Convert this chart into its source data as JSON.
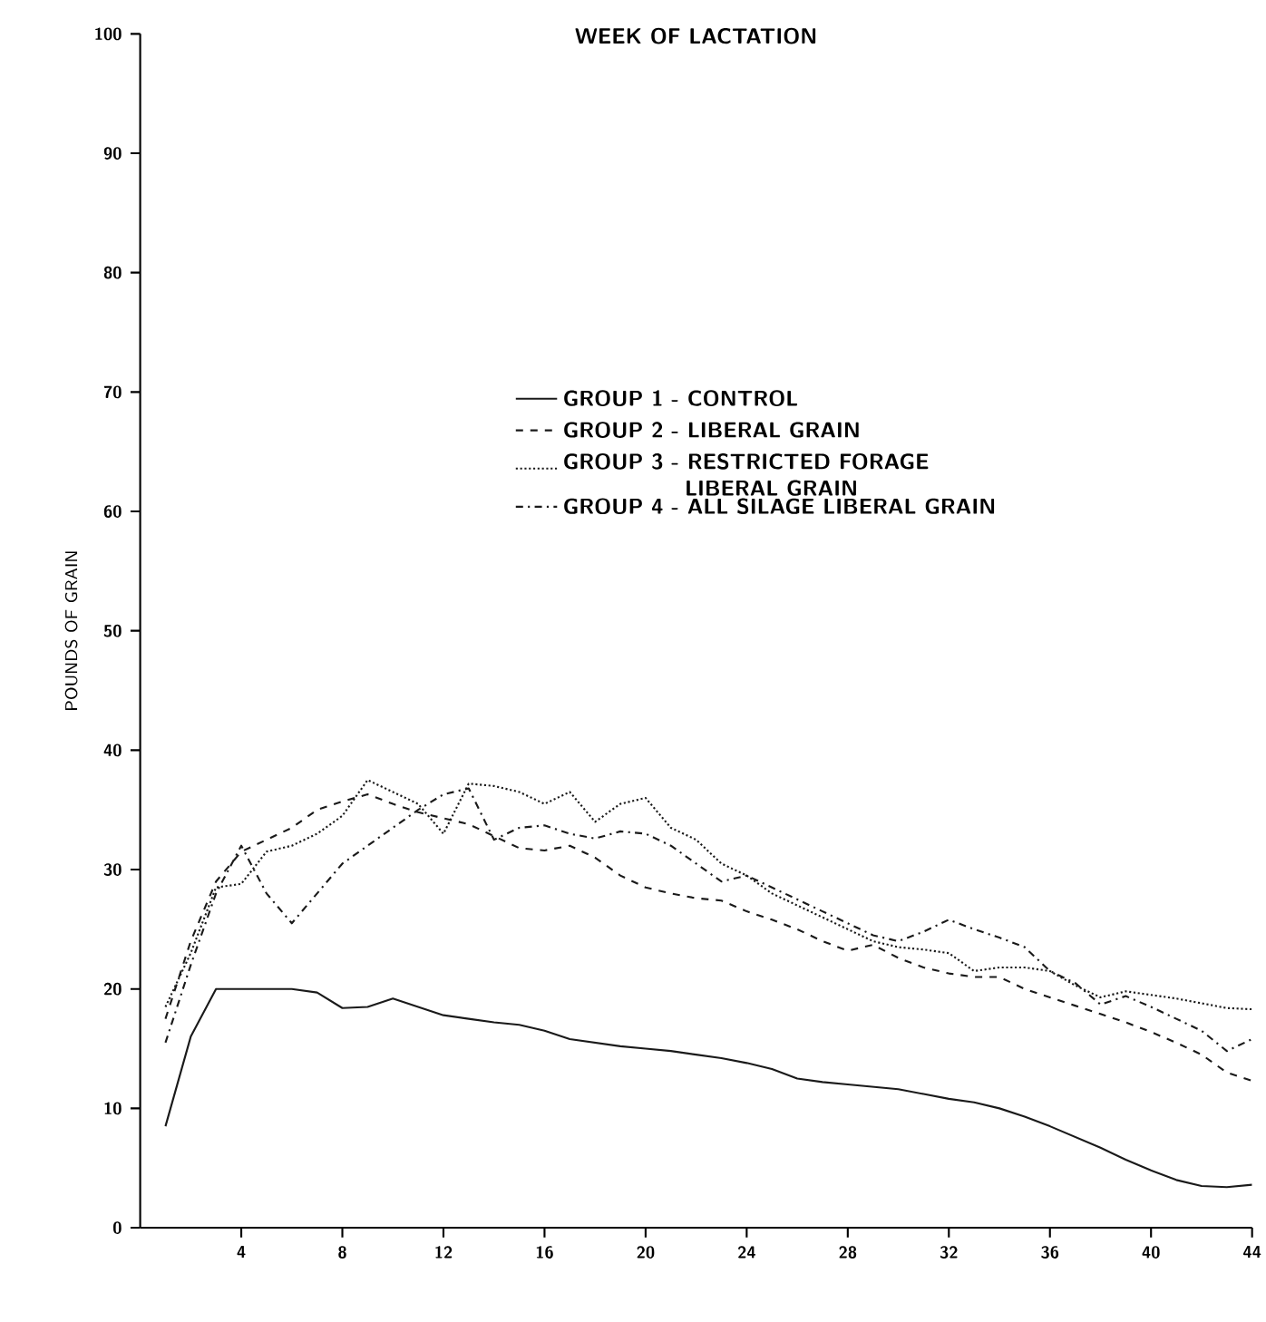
{
  "chart_data": {
    "type": "line",
    "title": "WEEK OF LACTATION",
    "ylabel": "POUNDS OF GRAIN",
    "x": [
      1,
      2,
      3,
      4,
      5,
      6,
      7,
      8,
      9,
      10,
      11,
      12,
      13,
      14,
      15,
      16,
      17,
      18,
      19,
      20,
      21,
      22,
      23,
      24,
      25,
      26,
      27,
      28,
      29,
      30,
      31,
      32,
      33,
      34,
      35,
      36,
      37,
      38,
      39,
      40,
      41,
      42,
      43,
      44
    ],
    "xlim": [
      0,
      44
    ],
    "xticks": [
      4,
      8,
      12,
      16,
      20,
      24,
      28,
      32,
      36,
      40,
      44
    ],
    "ylim": [
      0,
      100
    ],
    "yticks": [
      0,
      10,
      20,
      30,
      40,
      50,
      60,
      70,
      80,
      90,
      100
    ],
    "grid": false,
    "legend": "right",
    "marker": "none",
    "series": [
      {
        "name": "GROUP 1 - CONTROL",
        "color": "#1a1a1a",
        "line_style": "solid",
        "values": [
          8.5,
          16,
          20,
          20,
          20,
          20,
          19.7,
          18.4,
          18.5,
          19.2,
          18.5,
          17.8,
          17.5,
          17.2,
          17,
          16.5,
          15.8,
          15.5,
          15.2,
          15,
          14.8,
          14.5,
          14.2,
          13.8,
          13.3,
          12.5,
          12.2,
          12,
          11.8,
          11.6,
          11.2,
          10.8,
          10.5,
          10,
          9.3,
          8.5,
          7.6,
          6.7,
          5.7,
          4.8,
          4,
          3.5,
          3.4,
          3.6
        ]
      },
      {
        "name": "GROUP 2 - LIBERAL GRAIN",
        "color": "#1a1a1a",
        "line_style": "dashed",
        "values": [
          17.5,
          24,
          29,
          31.5,
          32.5,
          33.5,
          35,
          35.7,
          36.3,
          35.5,
          34.8,
          34.3,
          33.8,
          32.8,
          31.8,
          31.6,
          32,
          31,
          29.5,
          28.5,
          28,
          27.6,
          27.4,
          26.5,
          25.8,
          25,
          24,
          23.2,
          23.7,
          22.6,
          21.8,
          21.3,
          21,
          21,
          20,
          19.3,
          18.6,
          17.9,
          17.2,
          16.4,
          15.5,
          14.5,
          13,
          12.3
        ]
      },
      {
        "name": "GROUP 3 - RESTRICTED FORAGE LIBERAL GRAIN",
        "color": "#1a1a1a",
        "line_style": "dotted",
        "values": [
          18.5,
          23,
          28.5,
          28.8,
          31.5,
          32,
          33,
          34.5,
          37.5,
          36.5,
          35.5,
          33,
          37.2,
          37,
          36.5,
          35.5,
          36.5,
          34,
          35.5,
          36,
          33.5,
          32.5,
          30.5,
          29.5,
          28,
          27,
          26,
          25,
          24,
          23.5,
          23.3,
          23,
          21.5,
          21.8,
          21.8,
          21.5,
          20.3,
          19.3,
          19.8,
          19.5,
          19.2,
          18.8,
          18.4,
          18.3
        ]
      },
      {
        "name": "GROUP 4 - ALL SILAGE LIBERAL GRAIN",
        "color": "#1a1a1a",
        "line_style": "dashdot",
        "values": [
          15.5,
          22,
          28,
          32,
          28,
          25.5,
          28,
          30.5,
          32,
          33.5,
          35,
          36.3,
          36.8,
          32.5,
          33.5,
          33.7,
          33,
          32.6,
          33.2,
          33,
          32,
          30.5,
          29,
          29.5,
          28.5,
          27.5,
          26.5,
          25.5,
          24.5,
          24,
          24.8,
          25.8,
          25,
          24.3,
          23.5,
          21.5,
          20.5,
          18.7,
          19.4,
          18.5,
          17.5,
          16.5,
          14.8,
          15.8
        ]
      }
    ]
  }
}
